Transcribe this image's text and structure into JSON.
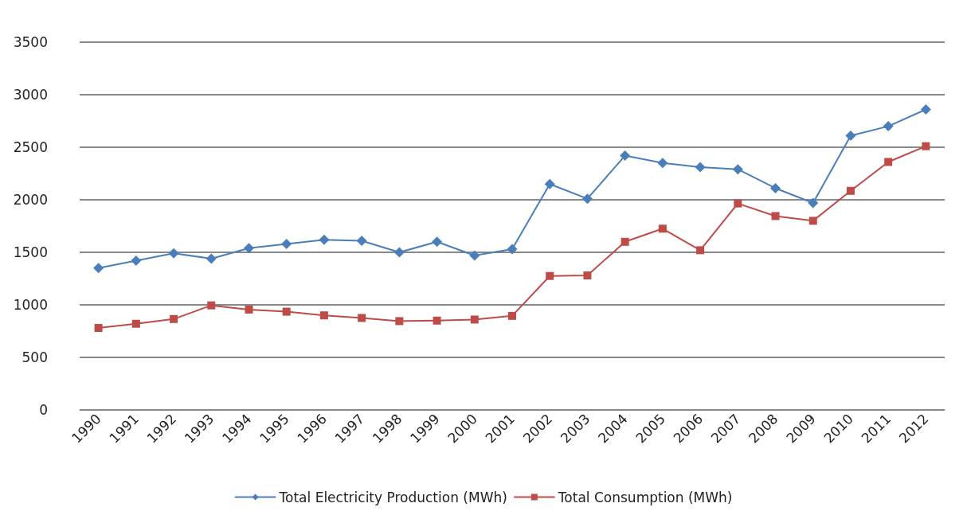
{
  "chart_data": {
    "type": "line",
    "categories": [
      "1990",
      "1991",
      "1992",
      "1993",
      "1994",
      "1995",
      "1996",
      "1997",
      "1998",
      "1999",
      "2000",
      "2001",
      "2002",
      "2003",
      "2004",
      "2005",
      "2006",
      "2007",
      "2008",
      "2009",
      "2010",
      "2011",
      "2012"
    ],
    "series": [
      {
        "name": "Total Electricity Production (MWh)",
        "color": "#4a7ebb",
        "marker": "diamond",
        "values": [
          1350,
          1420,
          1490,
          1440,
          1540,
          1580,
          1620,
          1610,
          1500,
          1600,
          1470,
          1530,
          2150,
          2010,
          2420,
          2350,
          2310,
          2290,
          2110,
          1970,
          2610,
          2700,
          2860
        ]
      },
      {
        "name": "Total Consumption (MWh)",
        "color": "#be4b48",
        "marker": "square",
        "values": [
          780,
          820,
          865,
          995,
          955,
          935,
          900,
          875,
          845,
          850,
          860,
          895,
          1275,
          1280,
          1600,
          1725,
          1520,
          1965,
          1845,
          1800,
          2085,
          2360,
          2510
        ]
      }
    ],
    "ylim": [
      0,
      3500
    ],
    "yticks": [
      0,
      500,
      1000,
      1500,
      2000,
      2500,
      3000,
      3500
    ],
    "grid": "y",
    "legend": "bottom",
    "line_style": "solid"
  }
}
